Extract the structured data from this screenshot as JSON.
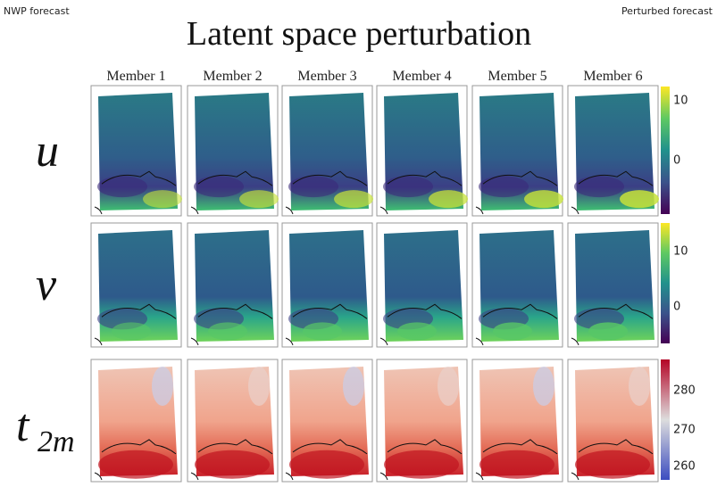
{
  "header": {
    "left": "NWP forecast",
    "right": "Perturbed forecast",
    "title": "Latent space perturbation"
  },
  "columns": [
    "Member 1",
    "Member 2",
    "Member 3",
    "Member 4",
    "Member 5",
    "Member 6"
  ],
  "rows": [
    {
      "label": "u",
      "colorbar_ticks": [
        "10",
        "0"
      ]
    },
    {
      "label": "v",
      "colorbar_ticks": [
        "10",
        "0"
      ]
    },
    {
      "label": "t",
      "subscript": "2m",
      "colorbar_ticks": [
        "280",
        "270",
        "260"
      ]
    }
  ]
}
